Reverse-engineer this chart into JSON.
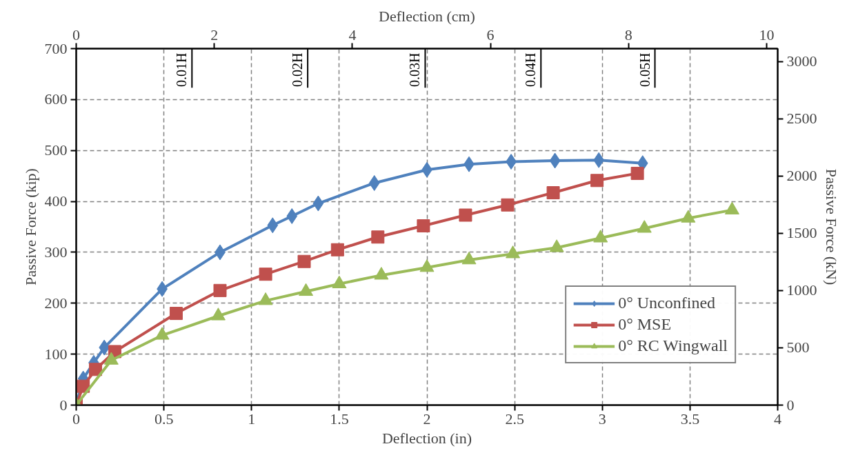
{
  "chart_data": {
    "type": "line",
    "xlabel": "Deflection (in)",
    "ylabel": "Passive Force (kip)",
    "x2label": "Deflection (cm)",
    "y2label": "Passive Force (kN)",
    "xlim": [
      0,
      4
    ],
    "xticks": [
      0,
      0.5,
      1,
      1.5,
      2,
      2.5,
      3,
      3.5,
      4
    ],
    "ylim": [
      0,
      700
    ],
    "yticks": [
      0,
      100,
      200,
      300,
      400,
      500,
      600,
      700
    ],
    "x2lim": [
      0,
      10.16
    ],
    "x2ticks": [
      0,
      2,
      4,
      6,
      8,
      10
    ],
    "y2lim": [
      0,
      3113.8
    ],
    "y2ticks": [
      0,
      500,
      1000,
      1500,
      2000,
      2500,
      3000
    ],
    "grid": true,
    "legend": "bottom right",
    "ref_lines": [
      {
        "axis": "x",
        "value": 0.66,
        "label": "0.01H"
      },
      {
        "axis": "x",
        "value": 1.32,
        "label": "0.02H"
      },
      {
        "axis": "x",
        "value": 1.99,
        "label": "0.03H"
      },
      {
        "axis": "x",
        "value": 2.65,
        "label": "0.04H"
      },
      {
        "axis": "x",
        "value": 3.3,
        "label": "0.05H"
      }
    ],
    "series": [
      {
        "name": "0° Unconfined",
        "color": "#4f81bd",
        "marker": "diamond",
        "x": [
          0,
          0.04,
          0.1,
          0.16,
          0.49,
          0.82,
          1.12,
          1.23,
          1.38,
          1.7,
          2.0,
          2.24,
          2.48,
          2.73,
          2.98,
          3.23
        ],
        "values": [
          0,
          52,
          83,
          113,
          228,
          300,
          353,
          371,
          396,
          436,
          462,
          473,
          478,
          480,
          481,
          475
        ]
      },
      {
        "name": "0° MSE",
        "color": "#c0504d",
        "marker": "square",
        "x": [
          0,
          0.04,
          0.11,
          0.22,
          0.57,
          0.82,
          1.08,
          1.3,
          1.49,
          1.72,
          1.98,
          2.22,
          2.46,
          2.72,
          2.97,
          3.2
        ],
        "values": [
          0,
          37,
          70,
          105,
          180,
          225,
          257,
          282,
          305,
          330,
          352,
          373,
          393,
          417,
          441,
          455
        ]
      },
      {
        "name": "0° RC Wingwall",
        "color": "#9bbb59",
        "marker": "triangle",
        "x": [
          0,
          0.2,
          0.49,
          0.81,
          1.08,
          1.31,
          1.5,
          1.74,
          2.0,
          2.24,
          2.49,
          2.74,
          2.99,
          3.24,
          3.49,
          3.74
        ],
        "values": [
          0,
          88,
          137,
          175,
          205,
          223,
          238,
          255,
          270,
          285,
          297,
          309,
          328,
          347,
          367,
          383
        ]
      }
    ]
  }
}
